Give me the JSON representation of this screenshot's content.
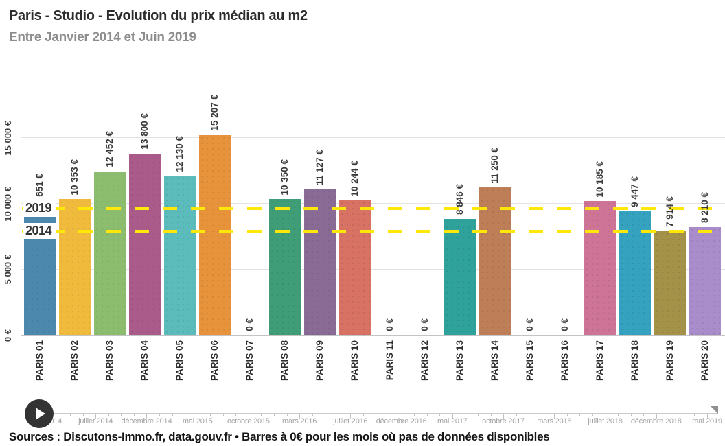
{
  "header": {
    "title": "Paris - Studio - Evolution du prix médian au m2",
    "subtitle": "Entre Janvier 2014 et Juin 2019"
  },
  "chart_data": {
    "type": "bar",
    "title": "Paris - Studio - Evolution du prix médian au m2",
    "subtitle": "Entre Janvier 2014 et Juin 2019",
    "categories": [
      "PARIS 01",
      "PARIS 02",
      "PARIS 03",
      "PARIS 04",
      "PARIS 05",
      "PARIS 06",
      "PARIS 07",
      "PARIS 08",
      "PARIS 09",
      "PARIS 10",
      "PARIS 11",
      "PARIS 12",
      "PARIS 13",
      "PARIS 14",
      "PARIS 15",
      "PARIS 16",
      "PARIS 17",
      "PARIS 18",
      "PARIS 19",
      "PARIS 20"
    ],
    "values": [
      9651,
      10353,
      12452,
      13800,
      12130,
      15207,
      0,
      10350,
      11127,
      10244,
      0,
      0,
      8846,
      11250,
      0,
      0,
      10185,
      9447,
      7914,
      8210
    ],
    "value_labels": [
      "9 651 €",
      "10 353 €",
      "12 452 €",
      "13 800 €",
      "12 130 €",
      "15 207 €",
      "0 €",
      "10 350 €",
      "11 127 €",
      "10 244 €",
      "0 €",
      "0 €",
      "8 846 €",
      "11 250 €",
      "0 €",
      "0 €",
      "10 185 €",
      "9 447 €",
      "7 914 €",
      "8 210 €"
    ],
    "bar_colors": [
      "#4C87AE",
      "#F0BA3D",
      "#8CBC6E",
      "#AA5B8A",
      "#5CBCBC",
      "#E6933C",
      null,
      "#3F9D77",
      "#8A6B96",
      "#D77264",
      null,
      null,
      "#2FA29B",
      "#BE7F58",
      null,
      null,
      "#CD7497",
      "#35A2C0",
      "#A59249",
      "#A98DCA"
    ],
    "ylabel": "",
    "xlabel": "",
    "ylim": [
      0,
      17700
    ],
    "grid": true,
    "y_ticks": [
      {
        "value": 0,
        "label": "0 €"
      },
      {
        "value": 5000,
        "label": "5 000 €"
      },
      {
        "value": 10000,
        "label": "10 000 €"
      },
      {
        "value": 15000,
        "label": "15 000 €"
      }
    ],
    "reference_lines": [
      {
        "label": "2019",
        "value": 9640,
        "color": "#ffe70a",
        "style": "dashed"
      },
      {
        "label": "2014",
        "value": 7930,
        "color": "#ffe70a",
        "style": "dashed"
      }
    ]
  },
  "timeline": {
    "labels": [
      "mars 2014",
      "juillet 2014",
      "décembre 2014",
      "mai 2015",
      "octobre 2015",
      "mars 2016",
      "juillet 2016",
      "décembre 2016",
      "mai 2017",
      "octobre 2017",
      "mars 2018",
      "juillet 2018",
      "décembre 2018",
      "mai 2019"
    ],
    "play_icon": "play"
  },
  "footer": {
    "sources": "Sources : Discutons-Immo.fr, data.gouv.fr • Barres à 0€ pour les mois où pas de données disponibles"
  }
}
